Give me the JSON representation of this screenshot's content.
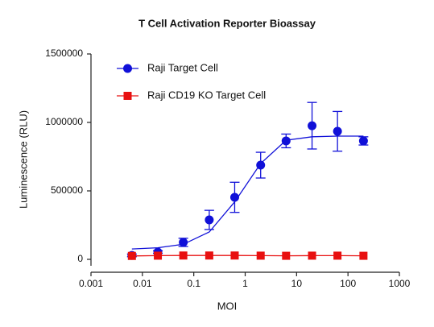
{
  "chart_data": {
    "type": "scatter",
    "title": "T Cell Activation Reporter Bioassay",
    "x_label": "MOI",
    "y_label": "Luminescence (RLU)",
    "x_scale": "log",
    "xlim": [
      0.001,
      1000
    ],
    "xticks": [
      0.001,
      0.01,
      0.1,
      1,
      10,
      100,
      1000
    ],
    "ylim": [
      0,
      1500000
    ],
    "yticks": [
      0,
      500000,
      1000000,
      1500000
    ],
    "legend": "upper-left",
    "x": [
      0.00625,
      0.02,
      0.0625,
      0.2,
      0.625,
      2,
      6.25,
      20,
      62.5,
      200
    ],
    "series": [
      {
        "name": "Raji Target Cell",
        "color": "#1010d8",
        "marker": "circle",
        "values": [
          29000,
          53000,
          124000,
          288000,
          453000,
          688000,
          865000,
          976000,
          935000,
          865000
        ],
        "errors": [
          10000,
          10000,
          30000,
          70000,
          110000,
          94000,
          50000,
          170000,
          145000,
          30000
        ],
        "fit": {
          "x": [
            0.00625,
            0.02,
            0.0625,
            0.2,
            0.625,
            2,
            6.25,
            20,
            62.5,
            200
          ],
          "values": [
            76000,
            85000,
            110000,
            200000,
            420000,
            700000,
            870000,
            895000,
            900000,
            900000
          ]
        }
      },
      {
        "name": "Raji CD19 KO Target Cell",
        "color": "#e81010",
        "marker": "square",
        "values": [
          25000,
          27000,
          28000,
          28000,
          28000,
          27000,
          26000,
          27000,
          27000,
          26000
        ]
      }
    ]
  }
}
